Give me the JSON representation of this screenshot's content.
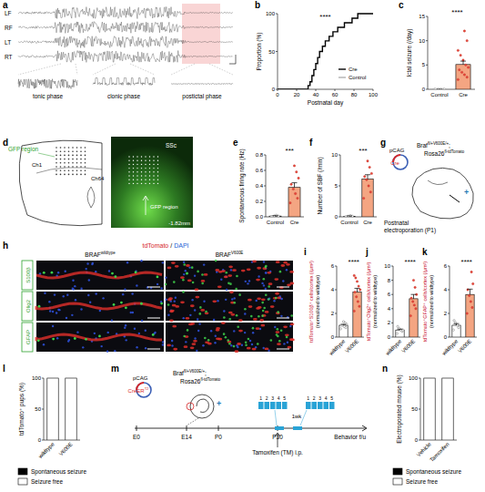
{
  "chart_data": [
    {
      "label": "b",
      "type": "line",
      "xlabel": "Postnatal day",
      "ylabel": "Proportion (%)",
      "annotation": "****",
      "x": [
        0,
        30,
        32,
        34,
        36,
        38,
        40,
        42,
        44,
        47,
        50,
        54,
        58,
        63,
        70,
        78,
        84,
        100
      ],
      "series": [
        {
          "name": "Cre",
          "color": "#000000",
          "line_style": "step",
          "values": [
            0,
            0,
            5,
            10,
            18,
            26,
            34,
            42,
            50,
            57,
            64,
            70,
            76,
            82,
            88,
            94,
            100,
            100
          ]
        },
        {
          "name": "Control",
          "color": "#b0b0b0",
          "line_style": "step",
          "values": [
            0,
            0,
            0,
            0,
            0,
            0,
            0,
            0,
            0,
            0,
            0,
            0,
            0,
            0,
            0,
            0,
            0,
            0
          ]
        }
      ],
      "xlim": [
        0,
        100
      ],
      "xticks": [
        0,
        20,
        40,
        60,
        80,
        100
      ],
      "ylim": [
        0,
        100
      ],
      "yticks": [
        0,
        50,
        100
      ],
      "legend": "lower-right"
    },
    {
      "label": "c",
      "type": "bar",
      "ylabel": "Ictal seizure (/day)",
      "annotation": "****",
      "categories": [
        "Control",
        "Cre"
      ],
      "values": [
        0,
        5.1
      ],
      "errors": [
        0,
        0.7
      ],
      "points": [
        [
          0,
          0,
          0,
          0,
          0,
          0
        ],
        [
          2,
          2.5,
          3,
          3.5,
          4,
          4.5,
          5,
          6,
          7,
          8,
          10,
          12
        ]
      ],
      "colors": [
        "#ffffff",
        "#f4a582"
      ],
      "ylim": [
        0,
        15
      ],
      "yticks": [
        0,
        5,
        10,
        15
      ]
    },
    {
      "label": "e",
      "type": "bar",
      "ylabel": "Spontaneous firing rate (Hz)",
      "annotation": "***",
      "categories": [
        "Control",
        "Cre"
      ],
      "values": [
        0.01,
        0.38
      ],
      "errors": [
        0.005,
        0.06
      ],
      "points": [
        [
          0,
          0.01,
          0.02,
          0.01,
          0
        ],
        [
          0.18,
          0.24,
          0.3,
          0.36,
          0.42,
          0.5,
          0.58,
          0.66
        ]
      ],
      "colors": [
        "#ffffff",
        "#f4a582"
      ],
      "ylim": [
        0,
        0.8
      ],
      "yticks": [
        {
          "value": 0,
          "label": "0.0"
        },
        0.2,
        0.4,
        0.6,
        0.8
      ]
    },
    {
      "label": "f",
      "type": "bar",
      "ylabel": "Number of SBF (/min)",
      "annotation": "***",
      "categories": [
        "Control",
        "Cre"
      ],
      "values": [
        0.1,
        6.1
      ],
      "errors": [
        0.05,
        0.7
      ],
      "points": [
        [
          0,
          0.1,
          0.2,
          0.1,
          0
        ],
        [
          3,
          4,
          5,
          6,
          6.5,
          7,
          8,
          9
        ]
      ],
      "colors": [
        "#ffffff",
        "#f4a582"
      ],
      "ylim": [
        0,
        10
      ],
      "yticks": [
        0,
        5,
        10
      ]
    },
    {
      "label": "i",
      "type": "bar",
      "ylabel": [
        "tdTomato⁺S100β⁺ cells/cortex (/µm²)",
        "(normalized to wildtype)"
      ],
      "annotation": "****",
      "categories": [
        "wildtype",
        "V600E"
      ],
      "values": [
        1,
        3.8
      ],
      "errors": [
        0.07,
        0.32
      ],
      "points": [
        [
          0.7,
          0.8,
          0.9,
          1,
          1,
          1.1,
          1.2,
          1.3
        ],
        [
          2.2,
          2.6,
          3,
          3.4,
          3.8,
          4,
          4.3,
          4.7,
          5,
          5.2
        ]
      ],
      "colors": [
        "#ffffff",
        "#f4a582"
      ],
      "ylim": [
        0,
        6
      ],
      "yticks": [
        0,
        2,
        4,
        6
      ]
    },
    {
      "label": "j",
      "type": "bar",
      "ylabel": [
        "tdTomato⁺Olig2⁺ cells/cortex (/µm²)",
        "(normalized to wildtype)"
      ],
      "annotation": "****",
      "categories": [
        "wildtype",
        "V600E"
      ],
      "values": [
        1,
        5.4
      ],
      "errors": [
        0.12,
        0.6
      ],
      "points": [
        [
          0.5,
          0.8,
          1,
          1.2,
          1.5,
          1
        ],
        [
          3,
          4,
          4.5,
          5,
          5.5,
          6,
          7,
          8
        ]
      ],
      "colors": [
        "#ffffff",
        "#f4a582"
      ],
      "ylim": [
        0,
        10
      ],
      "yticks": [
        0,
        2,
        4,
        6,
        8,
        10
      ]
    },
    {
      "label": "k",
      "type": "bar",
      "ylabel": [
        "tdTomato⁺GFAP⁺ cells/cortex (/µm²)",
        "(normalized to wildtype)"
      ],
      "annotation": "****",
      "categories": [
        "wildtype",
        "V600E"
      ],
      "values": [
        1,
        3.6
      ],
      "errors": [
        0.14,
        0.45
      ],
      "points": [
        [
          0.6,
          0.8,
          1,
          1.2,
          1.4
        ],
        [
          2,
          2.5,
          3,
          3.5,
          4,
          4.5,
          5.5
        ]
      ],
      "colors": [
        "#ffffff",
        "#f4a582"
      ],
      "ylim": [
        0,
        6
      ],
      "yticks": [
        0,
        2,
        4,
        6
      ]
    },
    {
      "label": "l",
      "type": "bar",
      "stacked": true,
      "ylabel": "tdTomato⁺ pups (%)",
      "categories": [
        "wildtype",
        "V600E"
      ],
      "series": [
        {
          "name": "Spontaneous seizure",
          "color": "#000000",
          "values": [
            0,
            0
          ]
        },
        {
          "name": "Seizure free",
          "color": "#ffffff",
          "values": [
            100,
            100
          ]
        }
      ],
      "ylim": [
        0,
        100
      ],
      "yticks": [
        0,
        50,
        100
      ],
      "legend": "bottom"
    },
    {
      "label": "n",
      "type": "bar",
      "stacked": true,
      "ylabel": "Electroporated mouse (%)",
      "categories": [
        "Vehicle",
        "Tamoxifen"
      ],
      "series": [
        {
          "name": "Spontaneous seizure",
          "color": "#000000",
          "values": [
            0,
            0
          ]
        },
        {
          "name": "Seizure free",
          "color": "#ffffff",
          "values": [
            100,
            100
          ]
        }
      ],
      "ylim": [
        0,
        100
      ],
      "yticks": [
        0,
        50,
        100
      ],
      "legend": "bottom"
    }
  ],
  "diagrams": {
    "a": {
      "label": "a",
      "channels": [
        "LF",
        "RF",
        "LT",
        "RT"
      ],
      "phases": [
        "tonic phase",
        "clonic phase",
        "postictal phase"
      ]
    },
    "d": {
      "label": "d",
      "brain_label": "GFP region",
      "first_channel": "Ch1",
      "last_channel": "Ch64",
      "region": "SSc",
      "image_label": "GFP region",
      "coordinate": "-1.82mm"
    },
    "g": {
      "label": "g",
      "promoter": "pCAG",
      "insert": "Cre",
      "genotype": [
        {
          "gene": "Braf",
          "allele": "fl/+V600E/+",
          "separator": ";"
        },
        {
          "gene": "Rosa26",
          "allele": "fl-tdTomato"
        }
      ],
      "plus": "+",
      "method": [
        "Postnatal",
        "electroporation (P1)"
      ]
    },
    "h": {
      "label": "h",
      "stains": [
        "tdTomato",
        "/",
        "DAPI"
      ],
      "columns": [
        {
          "gene": "BRAF",
          "allele": "wildtype"
        },
        {
          "gene": "BRAF",
          "allele": "V600E"
        }
      ],
      "rows": [
        "S100β",
        "Olig2",
        "GFAP"
      ]
    },
    "m": {
      "label": "m",
      "promoter": "pCAG",
      "insert": "CreER",
      "insert_sup": "T2",
      "genotype": [
        {
          "gene": "Braf",
          "allele": "fl/+V600E/+",
          "separator": ";"
        },
        {
          "gene": "Rosa26",
          "allele": "fl-tdTomato"
        }
      ],
      "plus": "+",
      "timepoints": [
        "E0",
        "E14",
        "P0",
        "P30"
      ],
      "days": [
        "1",
        "2",
        "3",
        "4",
        "5"
      ],
      "interval": "1wk",
      "injection": "Tamoxifen (TM) i.p.",
      "followup": "Behavior f/u"
    }
  }
}
